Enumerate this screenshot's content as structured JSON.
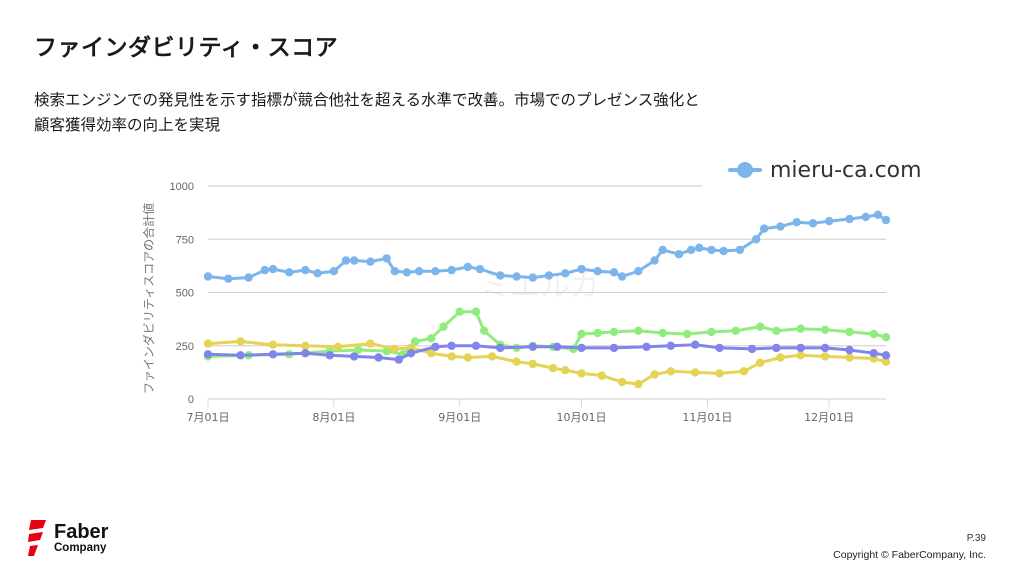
{
  "slide": {
    "title": "ファインダビリティ・スコア",
    "subtitle_line1": "検索エンジンでの発見性を示す指標が競合他社を超える水準で改善。市場でのプレゼンス強化と",
    "subtitle_line2": "顧客獲得効率の向上を実現",
    "page_number": "P.39",
    "copyright": "Copyright © FaberCompany, Inc.",
    "logo_line1": "Faber",
    "logo_line2": "Company",
    "logo_color": "#e60012"
  },
  "chart_data": {
    "type": "line",
    "ylabel": "ファインダビリティスコアの合計値",
    "ylim": [
      0,
      1000
    ],
    "yticks": [
      0,
      250,
      500,
      750,
      1000
    ],
    "x_tick_labels": [
      "7月01日",
      "8月01日",
      "9月01日",
      "10月01日",
      "11月01日",
      "12月01日"
    ],
    "x_tick_days": [
      0,
      31,
      62,
      92,
      123,
      153
    ],
    "x_range_days": [
      0,
      167
    ],
    "grid": true,
    "legend_position": "top-right",
    "series": [
      {
        "name": "mieru-ca.com",
        "color": "#7cb5ec",
        "x_days": [
          0,
          5,
          10,
          14,
          16,
          20,
          24,
          27,
          31,
          34,
          36,
          40,
          44,
          46,
          49,
          52,
          56,
          60,
          64,
          67,
          72,
          76,
          80,
          84,
          88,
          92,
          96,
          100,
          102,
          106,
          110,
          112,
          116,
          119,
          121,
          124,
          127,
          131,
          135,
          137,
          141,
          145,
          149,
          153,
          158,
          162,
          165,
          167
        ],
        "values": [
          575,
          565,
          570,
          605,
          610,
          595,
          605,
          590,
          600,
          650,
          650,
          645,
          660,
          600,
          595,
          600,
          600,
          605,
          620,
          610,
          580,
          575,
          570,
          580,
          590,
          610,
          600,
          595,
          575,
          600,
          650,
          700,
          680,
          700,
          710,
          700,
          695,
          700,
          750,
          800,
          810,
          830,
          825,
          835,
          845,
          855,
          865,
          840
        ]
      },
      {
        "name": "",
        "color": "#90ed7d",
        "x_days": [
          0,
          10,
          20,
          30,
          37,
          44,
          48,
          51,
          55,
          58,
          62,
          66,
          68,
          72,
          76,
          80,
          85,
          90,
          92,
          96,
          100,
          106,
          112,
          118,
          124,
          130,
          136,
          140,
          146,
          152,
          158,
          164,
          167
        ],
        "values": [
          200,
          205,
          210,
          225,
          230,
          225,
          210,
          270,
          285,
          340,
          410,
          410,
          320,
          255,
          240,
          250,
          245,
          235,
          305,
          310,
          315,
          320,
          310,
          305,
          315,
          320,
          340,
          320,
          330,
          325,
          315,
          305,
          290
        ]
      },
      {
        "name": "",
        "color": "#e4d354",
        "x_days": [
          0,
          8,
          16,
          24,
          32,
          40,
          46,
          50,
          55,
          60,
          64,
          70,
          76,
          80,
          85,
          88,
          92,
          97,
          102,
          106,
          110,
          114,
          120,
          126,
          132,
          136,
          141,
          146,
          152,
          158,
          164,
          167
        ],
        "values": [
          260,
          270,
          255,
          250,
          245,
          260,
          235,
          240,
          215,
          200,
          195,
          200,
          175,
          165,
          145,
          135,
          120,
          110,
          80,
          70,
          115,
          130,
          125,
          120,
          130,
          170,
          195,
          205,
          200,
          195,
          190,
          175
        ]
      },
      {
        "name": "",
        "color": "#8085e9",
        "x_days": [
          0,
          8,
          16,
          24,
          30,
          36,
          42,
          47,
          50,
          56,
          60,
          66,
          72,
          80,
          86,
          92,
          100,
          108,
          114,
          120,
          126,
          134,
          140,
          146,
          152,
          158,
          164,
          167
        ],
        "values": [
          210,
          205,
          210,
          215,
          205,
          200,
          195,
          185,
          215,
          245,
          250,
          250,
          240,
          245,
          245,
          240,
          240,
          245,
          250,
          255,
          240,
          235,
          240,
          240,
          240,
          230,
          215,
          205
        ]
      }
    ],
    "watermark": "ミエルカ"
  }
}
